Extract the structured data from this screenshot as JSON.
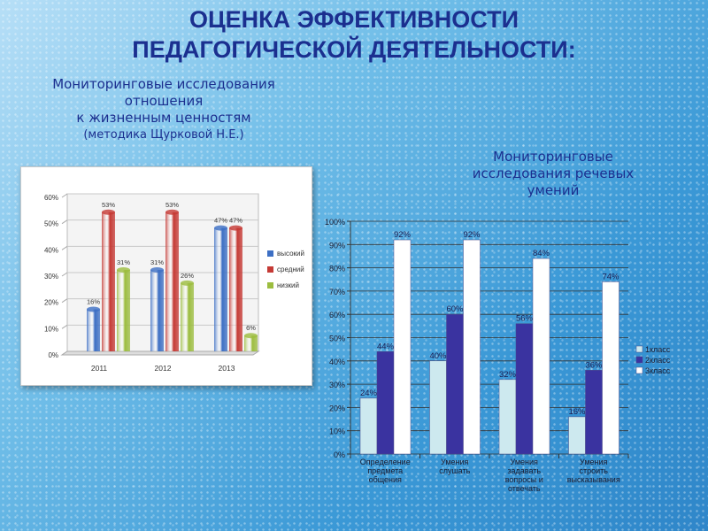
{
  "title": {
    "line1": "ОЦЕНКА ЭФФЕКТИВНОСТИ",
    "line2": "ПЕДАГОГИЧЕСКОЙ ДЕЯТЕЛЬНОСТИ:"
  },
  "left_heading": {
    "line1": "Мониторинговые исследования",
    "line2": "отношения",
    "line3": "к жизненным ценностям",
    "line4": "(методика Щурковой Н.Е.)"
  },
  "right_heading": {
    "line1": "Мониторинговые",
    "line2": "исследования речевых",
    "line3": "умений"
  },
  "colors": {
    "title": "#1b2f8f",
    "blue_bar": "#3d6fc4",
    "red_bar": "#c53a35",
    "green_bar": "#9cbd3f",
    "class1": "#cde9ef",
    "class2": "#3a33a0",
    "class3": "#ffffff"
  },
  "chart_data": [
    {
      "type": "bar",
      "categories": [
        "2011",
        "2012",
        "2013"
      ],
      "series": [
        {
          "name": "высокий",
          "values": [
            16,
            31,
            47
          ],
          "labels": [
            "16%",
            "31%",
            "47%"
          ]
        },
        {
          "name": "средний",
          "values": [
            53,
            53,
            47
          ],
          "labels": [
            "53%",
            "53%",
            "47%"
          ]
        },
        {
          "name": "низкий",
          "values": [
            31,
            26,
            6
          ],
          "labels": [
            "31%",
            "26%",
            "6%"
          ]
        }
      ],
      "ylim": [
        0,
        60
      ],
      "yticks": [
        "0%",
        "10%",
        "20%",
        "30%",
        "40%",
        "50%",
        "60%"
      ],
      "legend": "right",
      "grid": true
    },
    {
      "type": "bar",
      "categories": [
        [
          "Определение",
          "предмета",
          "общения"
        ],
        [
          "Умения",
          "слушать"
        ],
        [
          "Умения",
          "задавать",
          "вопросы и",
          "отвечать"
        ],
        [
          "Умения",
          "строить",
          "высказывания"
        ]
      ],
      "series": [
        {
          "name": "1класс",
          "values": [
            24,
            40,
            32,
            16
          ],
          "labels": [
            "24%",
            "40%",
            "32%",
            "16%"
          ]
        },
        {
          "name": "2класс",
          "values": [
            44,
            60,
            56,
            36
          ],
          "labels": [
            "44%",
            "60%",
            "56%",
            "36%"
          ]
        },
        {
          "name": "3класс",
          "values": [
            92,
            92,
            84,
            74
          ],
          "labels": [
            "92%",
            "92%",
            "84%",
            "74%"
          ]
        }
      ],
      "ylim": [
        0,
        100
      ],
      "yticks": [
        "0%",
        "10%",
        "20%",
        "30%",
        "40%",
        "50%",
        "60%",
        "70%",
        "80%",
        "90%",
        "100%"
      ],
      "legend": "right",
      "grid": true
    }
  ]
}
